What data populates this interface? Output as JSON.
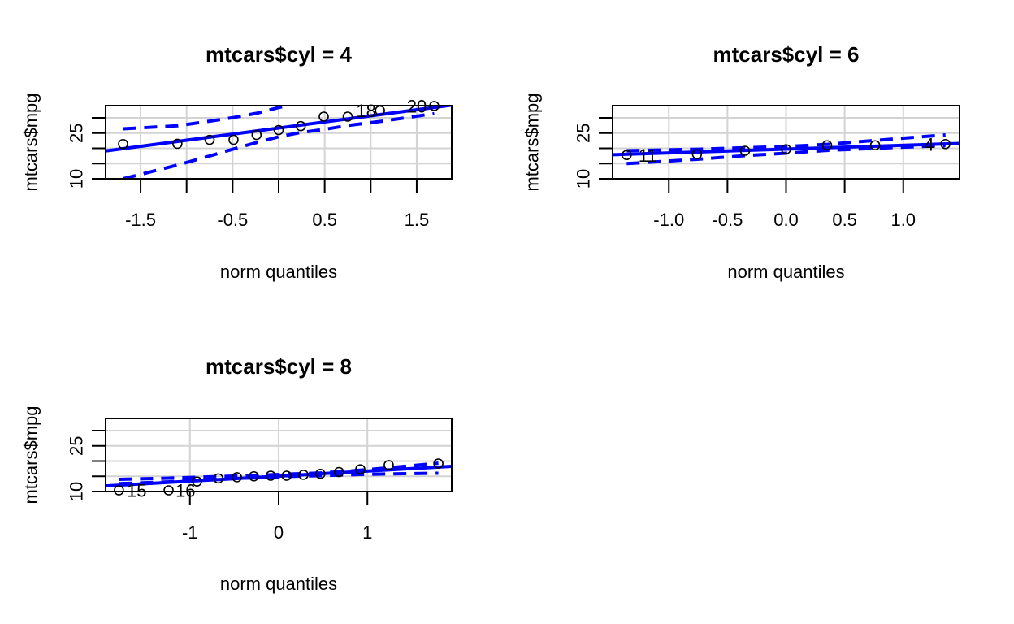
{
  "chart_data": [
    {
      "type": "scatter",
      "title": "mtcars$cyl = 4",
      "xlabel": "norm quantiles",
      "ylabel": "mtcars$mpg",
      "xlim": [
        -1.88,
        1.88
      ],
      "ylim": [
        10,
        34
      ],
      "xticks": [
        -1.5,
        -1,
        -0.5,
        0,
        0.5,
        1,
        1.5
      ],
      "xtick_labels": [
        "-1.5",
        "",
        "-0.5",
        "",
        "0.5",
        "",
        "1.5"
      ],
      "yticks": [
        10,
        15,
        20,
        25,
        30
      ],
      "ytick_labels": [
        "10",
        "",
        "",
        "25",
        ""
      ],
      "grid": true,
      "points": {
        "x": [
          -1.69,
          -1.1,
          -0.75,
          -0.49,
          -0.24,
          0.0,
          0.24,
          0.49,
          0.75,
          1.1,
          1.69
        ],
        "y": [
          21.4,
          21.5,
          22.8,
          22.8,
          24.4,
          26.0,
          27.3,
          30.4,
          30.4,
          32.4,
          33.9
        ]
      },
      "reference_line": {
        "intercept": 26.66,
        "slope": 4.0
      },
      "envelope": {
        "x": [
          -1.69,
          -1.1,
          -0.75,
          -0.49,
          -0.24,
          0.0,
          0.24,
          0.49,
          0.75,
          1.1,
          1.69
        ],
        "lower": [
          10.0,
          14.5,
          17.5,
          19.8,
          21.9,
          23.8,
          25.2,
          26.2,
          27.5,
          28.8,
          31.4
        ],
        "upper": [
          26.4,
          27.4,
          28.9,
          30.1,
          31.5,
          33.4,
          35.0,
          36.5,
          38.0,
          39.5,
          42.0
        ]
      },
      "point_labels": [
        {
          "x": 0.95,
          "y": 32.4,
          "text": "18"
        },
        {
          "x": 1.5,
          "y": 33.9,
          "text": "20"
        }
      ]
    },
    {
      "type": "scatter",
      "title": "mtcars$cyl = 6",
      "xlabel": "norm quantiles",
      "ylabel": "mtcars$mpg",
      "xlim": [
        -1.48,
        1.48
      ],
      "ylim": [
        10,
        34
      ],
      "xticks": [
        -1,
        -0.5,
        0,
        0.5,
        1
      ],
      "xtick_labels": [
        "-1.0",
        "-0.5",
        "0.0",
        "0.5",
        "1.0"
      ],
      "yticks": [
        10,
        15,
        20,
        25,
        30
      ],
      "ytick_labels": [
        "10",
        "",
        "",
        "25",
        ""
      ],
      "grid": true,
      "points": {
        "x": [
          -1.36,
          -0.76,
          -0.35,
          0.0,
          0.35,
          0.76,
          1.36
        ],
        "y": [
          17.8,
          18.1,
          19.2,
          19.7,
          21.0,
          21.0,
          21.4
        ]
      },
      "reference_line": {
        "intercept": 19.74,
        "slope": 1.25
      },
      "envelope": {
        "x": [
          -1.36,
          -0.76,
          -0.35,
          0.0,
          0.35,
          0.76,
          1.36
        ],
        "lower": [
          15.0,
          16.4,
          17.6,
          18.4,
          19.3,
          20.0,
          20.9
        ],
        "upper": [
          19.2,
          19.7,
          20.2,
          20.6,
          21.3,
          22.6,
          24.4
        ]
      },
      "point_labels": [
        {
          "x": -1.18,
          "y": 17.8,
          "text": "11"
        },
        {
          "x": 1.22,
          "y": 21.4,
          "text": "4"
        }
      ]
    },
    {
      "type": "scatter",
      "title": "mtcars$cyl = 8",
      "xlabel": "norm quantiles",
      "ylabel": "mtcars$mpg",
      "xlim": [
        -1.95,
        1.95
      ],
      "ylim": [
        10,
        34
      ],
      "xticks": [
        -1,
        0,
        1
      ],
      "xtick_labels": [
        "-1",
        "0",
        "1"
      ],
      "yticks": [
        10,
        15,
        20,
        25,
        30
      ],
      "ytick_labels": [
        "10",
        "",
        "",
        "25",
        ""
      ],
      "grid": true,
      "points": {
        "x": [
          -1.8,
          -1.24,
          -0.92,
          -0.68,
          -0.47,
          -0.28,
          -0.09,
          0.09,
          0.28,
          0.47,
          0.68,
          0.92,
          1.24,
          1.8
        ],
        "y": [
          10.4,
          10.4,
          13.3,
          14.3,
          14.7,
          15.0,
          15.2,
          15.2,
          15.5,
          15.8,
          16.4,
          17.3,
          18.7,
          19.2
        ]
      },
      "reference_line": {
        "intercept": 15.05,
        "slope": 1.65
      },
      "envelope": {
        "x": [
          -1.8,
          -1.24,
          -0.92,
          -0.68,
          -0.47,
          -0.28,
          -0.09,
          0.09,
          0.28,
          0.47,
          0.68,
          0.92,
          1.24,
          1.8
        ],
        "lower": [
          12.6,
          13.2,
          13.8,
          14.0,
          14.3,
          14.5,
          14.7,
          14.9,
          15.1,
          15.2,
          15.4,
          15.6,
          15.8,
          16.0
        ],
        "upper": [
          14.0,
          14.4,
          14.7,
          14.9,
          15.1,
          15.3,
          15.5,
          15.7,
          15.9,
          16.1,
          16.5,
          17.0,
          17.8,
          19.3
        ]
      },
      "point_labels": [
        {
          "x": -1.6,
          "y": 10.4,
          "text": "15"
        },
        {
          "x": -1.05,
          "y": 10.4,
          "text": "16"
        }
      ]
    }
  ],
  "colors": {
    "reference": "#0000ff",
    "grid": "#d3d3d3",
    "points": "#000000",
    "axis": "#000000"
  }
}
